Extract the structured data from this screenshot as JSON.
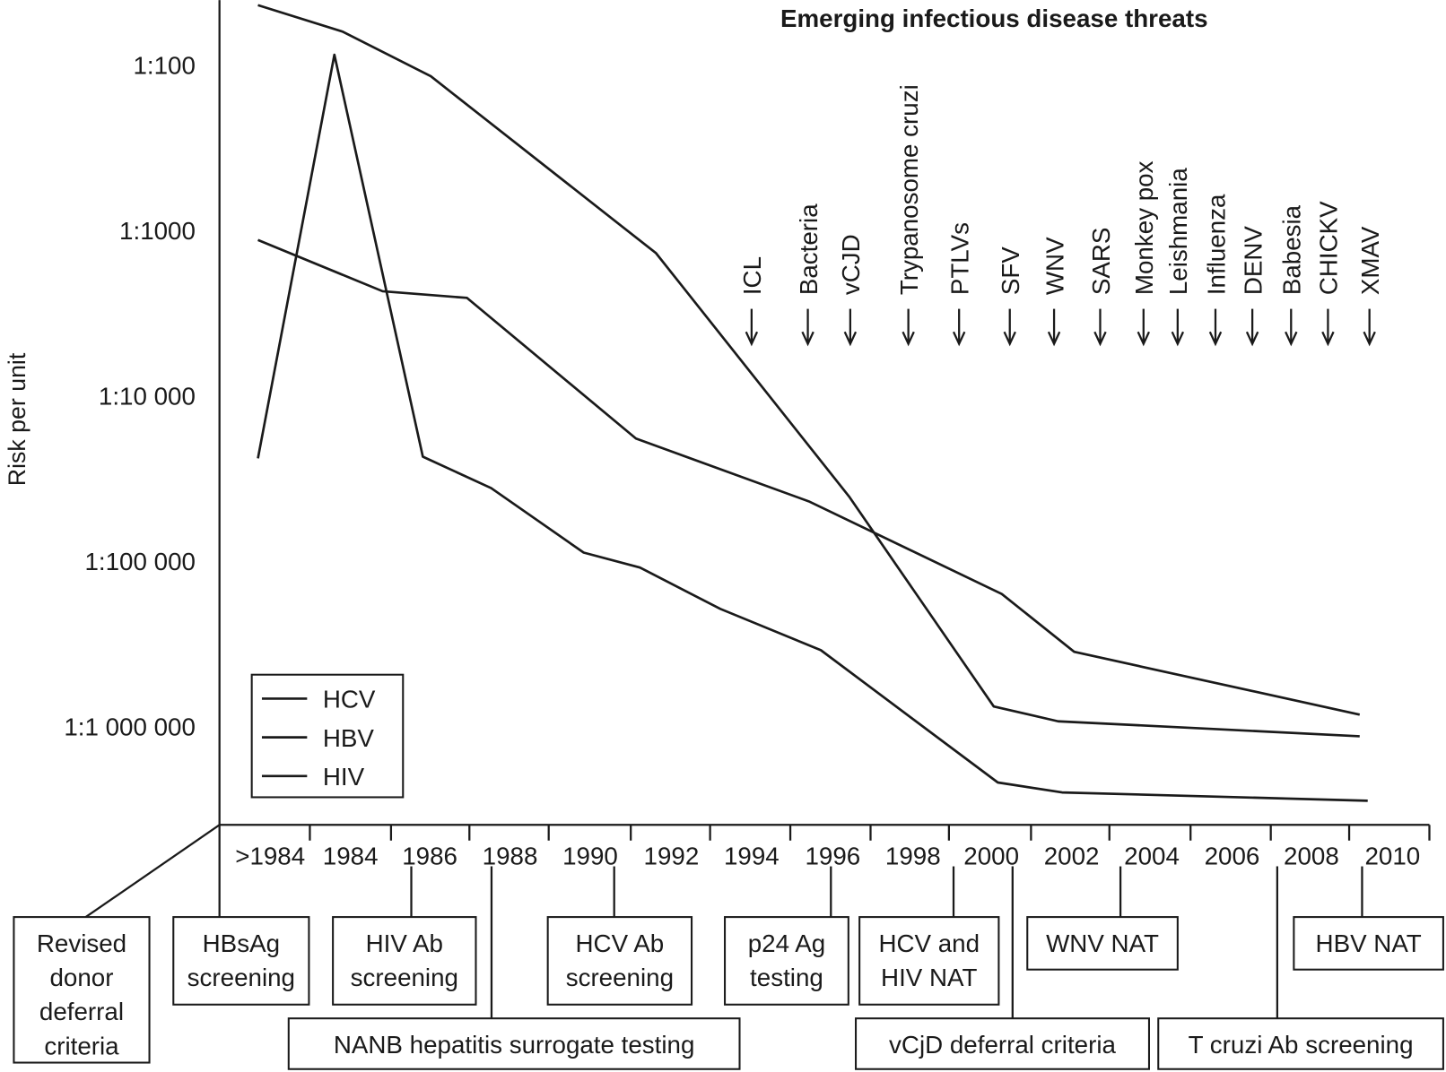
{
  "chart_data": {
    "type": "line",
    "title": "Emerging infectious disease threats",
    "ylabel": "Risk per unit",
    "xlabel": "",
    "y_scale": "log10 of risk denominator",
    "ylim": [
      1.6,
      6.6
    ],
    "y_ticks": [
      {
        "value": 2,
        "label": "1:100"
      },
      {
        "value": 3,
        "label": "1:1000"
      },
      {
        "value": 4,
        "label": "1:10 000"
      },
      {
        "value": 5,
        "label": "1:100 000"
      },
      {
        "value": 6,
        "label": "1:1 000 000"
      }
    ],
    "x_ticks": [
      ">1984",
      "1984",
      "1986",
      "1988",
      "1990",
      "1992",
      "1994",
      "1996",
      "1998",
      "2000",
      "2002",
      "2004",
      "2006",
      "2008",
      "2010"
    ],
    "series": [
      {
        "name": "HCV",
        "points": [
          [
            1981.7,
            1.64
          ],
          [
            1983.8,
            1.8
          ],
          [
            1986.0,
            2.07
          ],
          [
            1991.6,
            3.14
          ],
          [
            1996.4,
            4.61
          ],
          [
            2000.0,
            5.88
          ],
          [
            2001.6,
            5.97
          ],
          [
            2009.1,
            6.06
          ]
        ]
      },
      {
        "name": "HBV",
        "points": [
          [
            1981.7,
            3.06
          ],
          [
            1984.8,
            3.37
          ],
          [
            1986.9,
            3.41
          ],
          [
            1991.1,
            4.26
          ],
          [
            1995.4,
            4.64
          ],
          [
            2000.2,
            5.2
          ],
          [
            2002.0,
            5.55
          ],
          [
            2009.1,
            5.93
          ]
        ]
      },
      {
        "name": "HIV",
        "points": [
          [
            1981.7,
            4.38
          ],
          [
            1983.6,
            1.94
          ],
          [
            1985.8,
            4.37
          ],
          [
            1987.5,
            4.56
          ],
          [
            1989.8,
            4.95
          ],
          [
            1991.2,
            5.04
          ],
          [
            1993.2,
            5.29
          ],
          [
            1995.7,
            5.54
          ],
          [
            2000.1,
            6.34
          ],
          [
            2001.7,
            6.4
          ],
          [
            2009.3,
            6.45
          ]
        ]
      }
    ],
    "legend": [
      "HCV",
      "HBV",
      "HIV"
    ],
    "legend_position": "bottom-left",
    "threats": [
      "ICL",
      "Bacteria",
      "vCJD",
      "Trypanosome cruzi",
      "PTLVs",
      "SFV",
      "WNV",
      "SARS",
      "Monkey pox",
      "Leishmania",
      "Influenza",
      "DENV",
      "Babesia",
      "CHICKV",
      "XMAV"
    ],
    "interventions": [
      {
        "lines": [
          "Revised",
          "donor",
          "deferral",
          "criteria"
        ]
      },
      {
        "lines": [
          "HBsAg",
          "screening"
        ]
      },
      {
        "lines": [
          "HIV Ab",
          "screening"
        ]
      },
      {
        "lines": [
          "HCV Ab",
          "screening"
        ]
      },
      {
        "lines": [
          "p24 Ag",
          "testing"
        ]
      },
      {
        "lines": [
          "HCV and",
          "HIV NAT"
        ]
      },
      {
        "lines": [
          "WNV NAT"
        ]
      },
      {
        "lines": [
          "HBV NAT"
        ]
      },
      {
        "lines": [
          "NANB hepatitis surrogate testing"
        ]
      },
      {
        "lines": [
          "vCjD deferral criteria"
        ]
      },
      {
        "lines": [
          "T cruzi Ab screening"
        ]
      }
    ]
  }
}
